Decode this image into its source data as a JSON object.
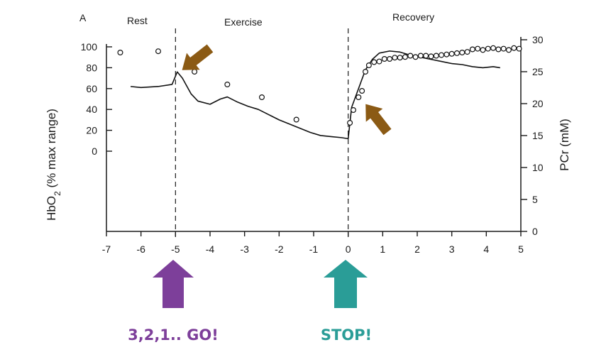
{
  "chart_data": {
    "type": "line",
    "panel_label": "A",
    "sections": [
      "Rest",
      "Exercise",
      "Recovery"
    ],
    "ylabel": "HbO2 (% max range)",
    "ylabel_sub": "2",
    "y2label": "PCr (mM)",
    "xlim": [
      -7,
      5
    ],
    "x_ticks": [
      "-7",
      "-6",
      "-5",
      "-4",
      "-3",
      "-2",
      "-1",
      "0",
      "1",
      "2",
      "3",
      "4",
      "5"
    ],
    "y_ticks": [
      "0",
      "20",
      "40",
      "60",
      "80",
      "100"
    ],
    "y2_ticks": [
      "0",
      "5",
      "10",
      "15",
      "20",
      "25",
      "30"
    ],
    "ylim_right": [
      0,
      30
    ],
    "vlines": [
      -5,
      0
    ],
    "series": [
      {
        "style": "line",
        "axis": "left",
        "x": [
          -6.3,
          -6.0,
          -5.5,
          -5.1,
          -4.95,
          -4.8,
          -4.55,
          -4.35,
          -4.0,
          -3.7,
          -3.5,
          -3.2,
          -2.9,
          -2.6,
          -2.3,
          -2.0,
          -1.7,
          -1.4,
          -1.1,
          -0.8,
          -0.5,
          -0.2,
          0.0,
          0.1,
          0.3,
          0.5,
          0.7,
          0.9,
          1.2,
          1.5,
          1.8,
          2.1,
          2.4,
          2.7,
          3.0,
          3.3,
          3.6,
          3.9,
          4.2,
          4.4
        ],
        "y": [
          62,
          61,
          62,
          64,
          76,
          70,
          55,
          48,
          45,
          50,
          52,
          47,
          43,
          40,
          35,
          30,
          26,
          22,
          18,
          15,
          14,
          13,
          12,
          42,
          60,
          78,
          88,
          94,
          96,
          95,
          92,
          90,
          88,
          86,
          84,
          83,
          81,
          80,
          81,
          80
        ]
      },
      {
        "style": "points",
        "axis": "right",
        "x": [
          -6.6,
          -5.5,
          -4.45,
          -3.5,
          -2.5,
          -1.5,
          0.05,
          0.15,
          0.3,
          0.4,
          0.5,
          0.6,
          0.75,
          0.9,
          1.05,
          1.2,
          1.35,
          1.5,
          1.65,
          1.8,
          1.95,
          2.1,
          2.25,
          2.4,
          2.55,
          2.7,
          2.85,
          3.0,
          3.15,
          3.3,
          3.45,
          3.6,
          3.75,
          3.9,
          4.05,
          4.2,
          4.35,
          4.5,
          4.65,
          4.8,
          4.95
        ],
        "y": [
          28,
          28.2,
          25,
          23,
          21,
          17.5,
          17,
          19,
          21,
          22,
          25,
          26,
          26.5,
          26.6,
          27,
          27,
          27.2,
          27.2,
          27.3,
          27.5,
          27.3,
          27.5,
          27.5,
          27.4,
          27.5,
          27.6,
          27.7,
          27.8,
          27.9,
          28,
          28.1,
          28.5,
          28.6,
          28.4,
          28.6,
          28.7,
          28.5,
          28.6,
          28.4,
          28.7,
          28.6
        ]
      }
    ]
  },
  "annotations": {
    "go_label": "3,2,1.. GO!",
    "stop_label": "STOP!"
  },
  "colors": {
    "go_arrow": "#7d3f9a",
    "stop_arrow": "#2a9d97",
    "marker_arrow": "#8b5a14",
    "ink": "#1a1a1a"
  }
}
